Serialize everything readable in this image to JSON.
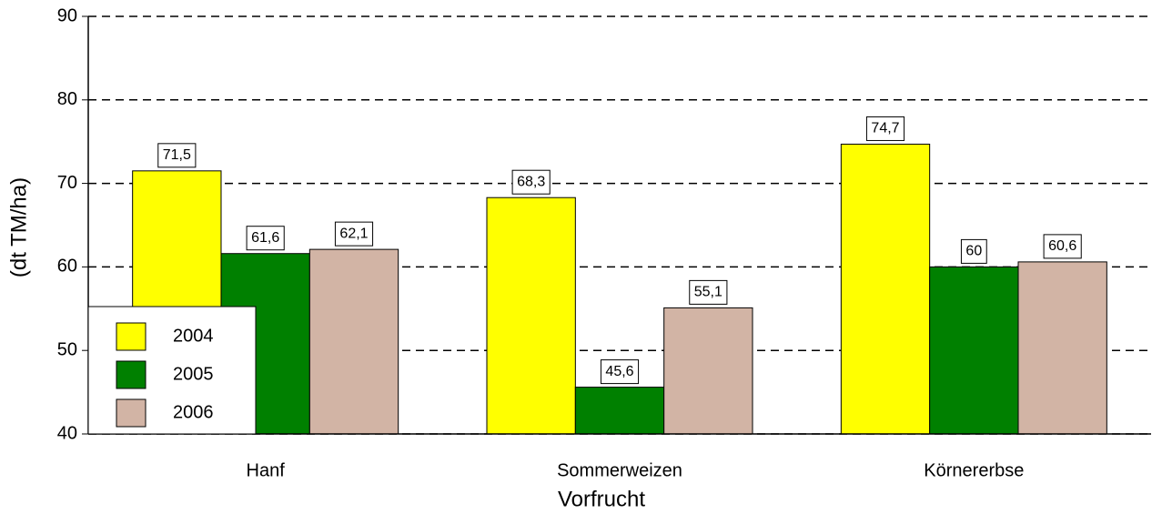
{
  "chart_data": {
    "type": "bar",
    "xlabel": "Vorfrucht",
    "ylabel": "(dt TM/ha)",
    "categories": [
      "Hanf",
      "Sommerweizen",
      "Körnererbse"
    ],
    "series": [
      {
        "name": "2004",
        "color": "#ffff00",
        "values": [
          71.5,
          68.3,
          74.7
        ],
        "value_labels": [
          "71,5",
          "68,3",
          "74,7"
        ]
      },
      {
        "name": "2005",
        "color": "#008000",
        "values": [
          61.6,
          45.6,
          60
        ],
        "value_labels": [
          "61,6",
          "45,6",
          "60"
        ]
      },
      {
        "name": "2006",
        "color": "#d2b4a5",
        "values": [
          62.1,
          55.1,
          60.6
        ],
        "value_labels": [
          "62,1",
          "55,1",
          "60,6"
        ]
      }
    ],
    "ylim": [
      40,
      90
    ],
    "yticks": [
      40,
      50,
      60,
      70,
      80,
      90
    ],
    "grid": true,
    "legend": "lower left"
  }
}
